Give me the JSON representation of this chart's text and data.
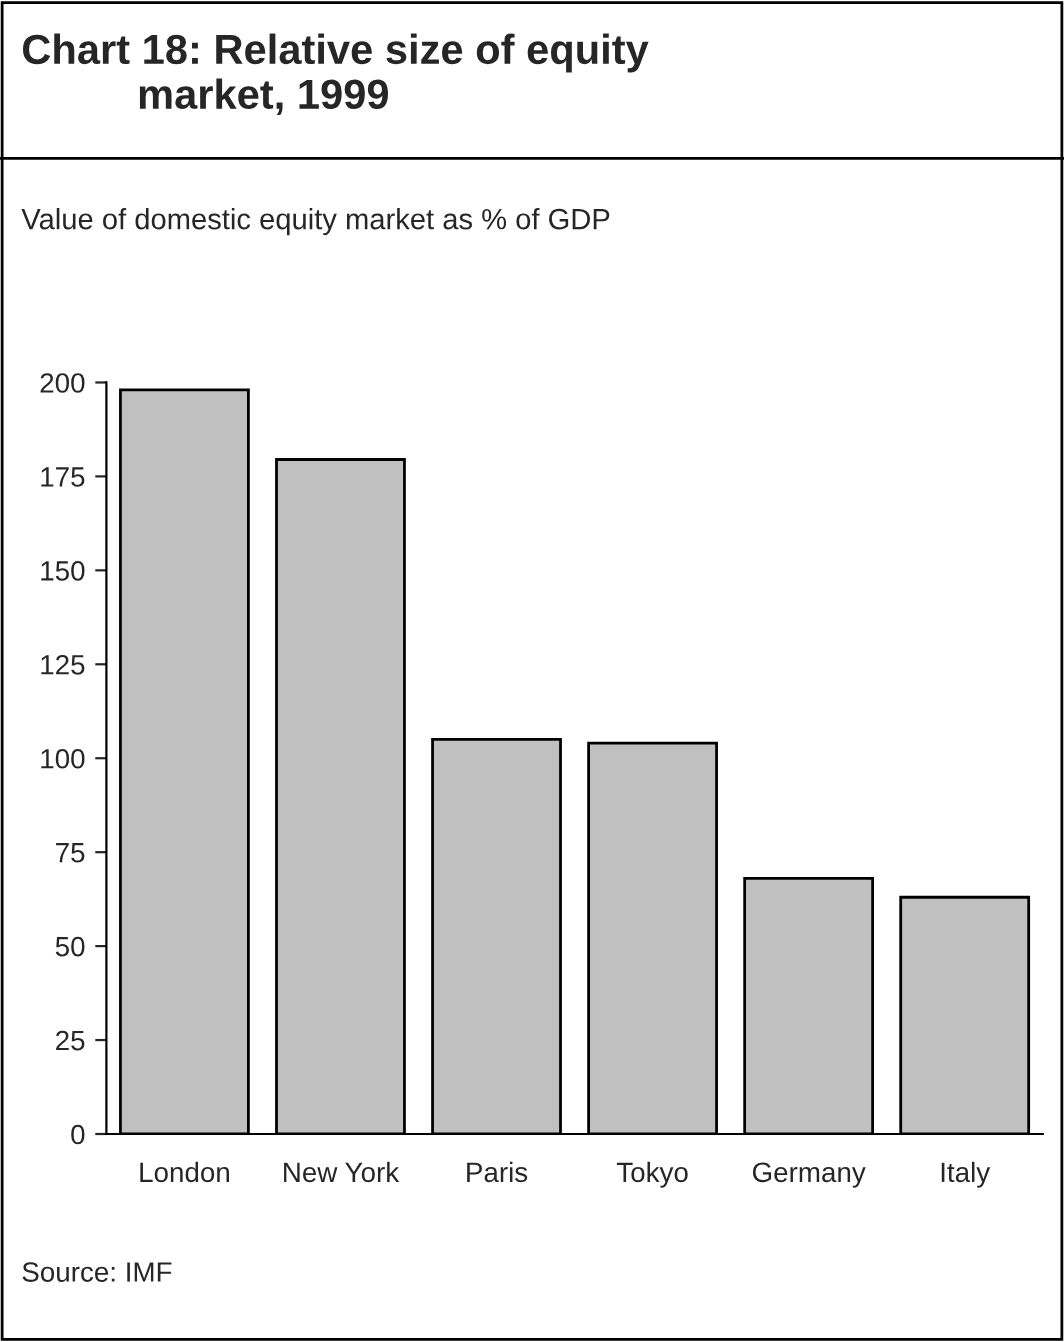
{
  "chart_data": {
    "type": "bar",
    "title": "Chart 18: Relative size of equity\n          market, 1999",
    "subtitle": "Value of domestic equity market as % of GDP",
    "categories": [
      "London",
      "New York",
      "Paris",
      "Tokyo",
      "Germany",
      "Italy"
    ],
    "values": [
      198,
      179.5,
      105,
      104,
      68,
      63
    ],
    "color": "#c0c0c0",
    "ylim": [
      0,
      200
    ],
    "yticks": [
      0,
      25,
      50,
      75,
      100,
      125,
      150,
      175,
      200
    ],
    "grid": false,
    "annotations": [
      "Source: IMF"
    ]
  }
}
